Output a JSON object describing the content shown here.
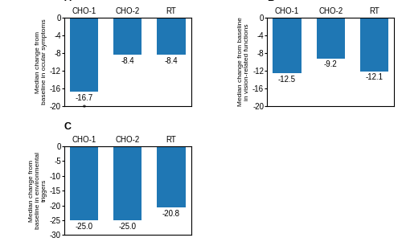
{
  "chart_data": [
    {
      "type": "bar",
      "title": "A",
      "categories": [
        "CHO-1",
        "CHO-2",
        "RT"
      ],
      "values": [
        -16.7,
        -8.4,
        -8.4
      ],
      "ylim": [
        -20,
        0
      ],
      "yticks": [
        0,
        -4,
        -8,
        -12,
        -16,
        -20
      ],
      "ylabel": "Median change from\nbaseline in ocular symptoms",
      "data_labels": true,
      "annotations": [
        {
          "text": "*",
          "category": "CHO-1"
        }
      ]
    },
    {
      "type": "bar",
      "title": "B",
      "categories": [
        "CHO-1",
        "CHO-2",
        "RT"
      ],
      "values": [
        -12.5,
        -9.2,
        -12.1
      ],
      "ylim": [
        -20,
        0
      ],
      "yticks": [
        0,
        -4,
        -8,
        -12,
        -16,
        -20
      ],
      "ylabel": "Median change from baseline\nin vision-related functions",
      "data_labels": true
    },
    {
      "type": "bar",
      "title": "C",
      "categories": [
        "CHO-1",
        "CHO-2",
        "RT"
      ],
      "values": [
        -25.0,
        -25.0,
        -20.8
      ],
      "ylim": [
        -30,
        0
      ],
      "yticks": [
        0,
        -5,
        -10,
        -15,
        -20,
        -25,
        -30
      ],
      "ylabel": "Median change from\nbaseline in environmental\ntriggers",
      "data_labels": true
    }
  ]
}
